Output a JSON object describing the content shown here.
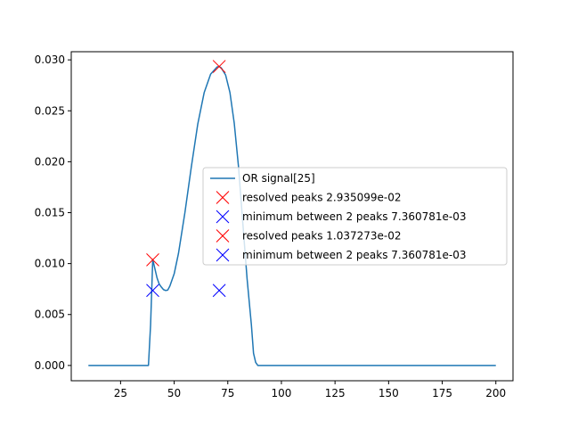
{
  "chart_data": {
    "type": "line",
    "title": "",
    "xlabel": "",
    "ylabel": "",
    "xlim": [
      2,
      208
    ],
    "ylim": [
      -0.0015,
      0.0308
    ],
    "xticks": [
      25,
      50,
      75,
      100,
      125,
      150,
      175,
      200
    ],
    "xtick_labels": [
      "25",
      "50",
      "75",
      "100",
      "125",
      "150",
      "175",
      "200"
    ],
    "yticks": [
      0.0,
      0.005,
      0.01,
      0.015,
      0.02,
      0.025,
      0.03
    ],
    "ytick_labels": [
      "0.000",
      "0.005",
      "0.010",
      "0.015",
      "0.020",
      "0.025",
      "0.030"
    ],
    "series": [
      {
        "name": "OR signal[25]",
        "color": "#1f77b4",
        "x": [
          10,
          20,
          30,
          38,
          39,
          40,
          41,
          42,
          43,
          44,
          45,
          46,
          47,
          48,
          50,
          52,
          55,
          58,
          61,
          64,
          67,
          70,
          71,
          72,
          74,
          76,
          78,
          80,
          82,
          84,
          86,
          87,
          88,
          89,
          90,
          100,
          125,
          150,
          175,
          200
        ],
        "y": [
          0,
          0,
          0,
          0,
          0.004,
          0.0104,
          0.0095,
          0.0086,
          0.008,
          0.0077,
          0.00745,
          0.00736,
          0.0074,
          0.0078,
          0.009,
          0.011,
          0.015,
          0.0195,
          0.0237,
          0.0268,
          0.0286,
          0.0293,
          0.02935,
          0.0292,
          0.0285,
          0.0268,
          0.0238,
          0.0195,
          0.014,
          0.0085,
          0.004,
          0.0012,
          0.0003,
          0,
          0,
          0,
          0,
          0,
          0,
          0
        ]
      }
    ],
    "markers": [
      {
        "label": "resolved peaks 2.935099e-02",
        "color": "#ff0000",
        "x": 71,
        "y": 0.02935099
      },
      {
        "label": "minimum between 2 peaks 7.360781e-03",
        "color": "#0000ff",
        "x": 71,
        "y": 0.007360781
      },
      {
        "label": "resolved peaks 1.037273e-02",
        "color": "#ff0000",
        "x": 40,
        "y": 0.01037273
      },
      {
        "label": "minimum between 2 peaks 7.360781e-03",
        "color": "#0000ff",
        "x": 40,
        "y": 0.007360781
      }
    ],
    "legend": {
      "placement": "center-right",
      "entries": [
        {
          "label": "OR signal[25]",
          "kind": "line",
          "color": "#1f77b4"
        },
        {
          "label": "resolved peaks 2.935099e-02",
          "kind": "x",
          "color": "#ff0000"
        },
        {
          "label": "minimum between 2 peaks 7.360781e-03",
          "kind": "x",
          "color": "#0000ff"
        },
        {
          "label": "resolved peaks 1.037273e-02",
          "kind": "x",
          "color": "#ff0000"
        },
        {
          "label": "minimum between 2 peaks 7.360781e-03",
          "kind": "x",
          "color": "#0000ff"
        }
      ]
    }
  }
}
